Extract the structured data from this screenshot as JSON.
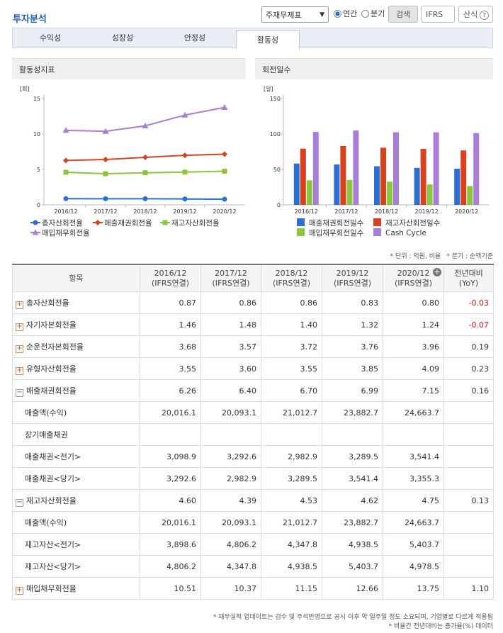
{
  "header": {
    "title": "투자분석",
    "select": "주재무제표",
    "radios": [
      "연간",
      "분기"
    ],
    "selected_radio": 0,
    "buttons": [
      "검색",
      "IFRS",
      "산식"
    ]
  },
  "tabs": [
    "수익성",
    "성장성",
    "안정성",
    "활동성"
  ],
  "active_tab": 3,
  "chart_data": [
    {
      "type": "line",
      "title": "활동성지표",
      "y_unit": "[회]",
      "categories": [
        "2016/12",
        "2017/12",
        "2018/12",
        "2019/12",
        "2020/12"
      ],
      "ylim": [
        0,
        15
      ],
      "yticks": [
        0,
        5,
        10,
        15
      ],
      "series": [
        {
          "name": "총자산회전율",
          "color": "#2a6fd6",
          "marker": "circle",
          "values": [
            0.87,
            0.86,
            0.86,
            0.83,
            0.8
          ]
        },
        {
          "name": "매출채권회전율",
          "color": "#d9421c",
          "marker": "diamond",
          "values": [
            6.26,
            6.4,
            6.7,
            6.99,
            7.15
          ]
        },
        {
          "name": "재고자산회전율",
          "color": "#8cc63e",
          "marker": "square",
          "values": [
            4.6,
            4.39,
            4.53,
            4.62,
            4.75
          ]
        },
        {
          "name": "매입채무회전율",
          "color": "#a77fd6",
          "marker": "triangle",
          "values": [
            10.51,
            10.37,
            11.15,
            12.66,
            13.75
          ]
        }
      ]
    },
    {
      "type": "bar",
      "title": "회전일수",
      "y_unit": "[일]",
      "categories": [
        "2016/12",
        "2017/12",
        "2018/12",
        "2019/12",
        "2020/12"
      ],
      "ylim": [
        0,
        150
      ],
      "yticks": [
        0,
        50,
        100,
        150
      ],
      "series": [
        {
          "name": "매출채권회전일수",
          "color": "#2a6fd6",
          "values": [
            58.3,
            57.0,
            54.5,
            52.2,
            51.0
          ]
        },
        {
          "name": "재고자산회전일수",
          "color": "#d9421c",
          "values": [
            79.3,
            83.1,
            80.6,
            79.0,
            76.8
          ]
        },
        {
          "name": "매입채무회전일수",
          "color": "#8cc63e",
          "values": [
            34.7,
            35.2,
            32.7,
            28.8,
            26.5
          ]
        },
        {
          "name": "Cash Cycle",
          "color": "#a77fd6",
          "values": [
            102.9,
            104.9,
            102.4,
            102.4,
            101.3
          ]
        }
      ]
    }
  ],
  "notes": [
    "* 단위 : 억원, 비율",
    "* 분기 : 순액기준"
  ],
  "table": {
    "negative_color": "#e0101a",
    "columns": [
      [
        "항목"
      ],
      [
        "2016/12",
        "(IFRS연결)"
      ],
      [
        "2017/12",
        "(IFRS연결)"
      ],
      [
        "2018/12",
        "(IFRS연결)"
      ],
      [
        "2019/12",
        "(IFRS연결)"
      ],
      [
        "2020/12",
        "(IFRS연결)"
      ],
      [
        "전년대비",
        "(YoY)"
      ]
    ],
    "rows": [
      {
        "label": "총자산회전율",
        "expanded": false,
        "values": [
          "0.87",
          "0.86",
          "0.86",
          "0.83",
          "0.80",
          "-0.03"
        ]
      },
      {
        "label": "자기자본회전율",
        "expanded": false,
        "values": [
          "1.46",
          "1.48",
          "1.40",
          "1.32",
          "1.24",
          "-0.07"
        ]
      },
      {
        "label": "순운전자본회전율",
        "expanded": false,
        "values": [
          "3.68",
          "3.57",
          "3.72",
          "3.76",
          "3.96",
          "0.19"
        ]
      },
      {
        "label": "유형자산회전율",
        "expanded": false,
        "values": [
          "3.55",
          "3.60",
          "3.55",
          "3.85",
          "4.09",
          "0.23"
        ]
      },
      {
        "label": "매출채권회전율",
        "expanded": true,
        "values": [
          "6.26",
          "6.40",
          "6.70",
          "6.99",
          "7.15",
          "0.16"
        ]
      },
      {
        "label": "매출액(수익)",
        "values": [
          "20,016.1",
          "20,093.1",
          "21,012.7",
          "23,882.7",
          "24,663.7",
          null
        ]
      },
      {
        "label": "장기매출채권",
        "values": [
          null,
          null,
          null,
          null,
          null,
          null
        ]
      },
      {
        "label": "매출채권<전기>",
        "values": [
          "3,098.9",
          "3,292.6",
          "2,982.9",
          "3,289.5",
          "3,541.4",
          null
        ]
      },
      {
        "label": "매출채권<당기>",
        "values": [
          "3,292.6",
          "2,982.9",
          "3,289.5",
          "3,541.4",
          "3,355.3",
          null
        ]
      },
      {
        "label": "재고자산회전율",
        "expanded": true,
        "values": [
          "4.60",
          "4.39",
          "4.53",
          "4.62",
          "4.75",
          "0.13"
        ]
      },
      {
        "label": "매출액(수익)",
        "values": [
          "20,016.1",
          "20,093.1",
          "21,012.7",
          "23,882.7",
          "24,663.7",
          null
        ]
      },
      {
        "label": "재고자산<전기>",
        "values": [
          "3,898.6",
          "4,806.2",
          "4,347.8",
          "4,938.5",
          "5,403.7",
          null
        ]
      },
      {
        "label": "재고자산<당기>",
        "values": [
          "4,806.2",
          "4,347.8",
          "4,938.5",
          "5,403.7",
          "4,978.5",
          null
        ]
      },
      {
        "label": "매입채무회전율",
        "expanded": false,
        "values": [
          "10.51",
          "10.37",
          "11.15",
          "12.66",
          "13.75",
          "1.10"
        ]
      }
    ]
  },
  "footnotes": [
    "* 재무실적 업데이트는 검수 및 주석반영으로 공시 이후 약 일주일 정도 소요되며, 기업별로 다르게 적용됨",
    "* 비율간 전년대비는 증가율(%) 데이터"
  ]
}
